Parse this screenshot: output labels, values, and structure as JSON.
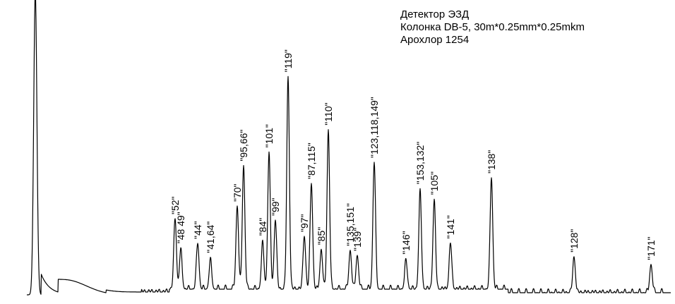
{
  "chart_data": {
    "type": "line",
    "title_lines": [
      "Детектор ЭЗД",
      "Колонка DB-5, 30m*0.25mm*0.25mkm",
      "Арохлор 1254"
    ],
    "xlabel": "",
    "ylabel": "",
    "grid": false,
    "legend": "none",
    "line_color": "#000000",
    "peaks": [
      {
        "label": "\"52\"",
        "rt": 248,
        "h": 100
      },
      {
        "label": "\"48 49\"",
        "rt": 256,
        "h": 55
      },
      {
        "label": "\"44\"",
        "rt": 280,
        "h": 65
      },
      {
        "label": "\"41,64\"",
        "rt": 298,
        "h": 40
      },
      {
        "label": "\"70\"",
        "rt": 336,
        "h": 118
      },
      {
        "label": "\"95,66\"",
        "rt": 345,
        "h": 175
      },
      {
        "label": "\"84\"",
        "rt": 372,
        "h": 65
      },
      {
        "label": "\"101\"",
        "rt": 381,
        "h": 192
      },
      {
        "label": "\"99\"",
        "rt": 390,
        "h": 98
      },
      {
        "label": "\"119\"",
        "rt": 408,
        "h": 300
      },
      {
        "label": "\"97\"",
        "rt": 431,
        "h": 75
      },
      {
        "label": "\"87,115\"",
        "rt": 441,
        "h": 150
      },
      {
        "label": "\"85\"",
        "rt": 455,
        "h": 55
      },
      {
        "label": "\"110\"",
        "rt": 465,
        "h": 225
      },
      {
        "label": "\"135,151\"",
        "rt": 496,
        "h": 55
      },
      {
        "label": "\"139\"",
        "rt": 506,
        "h": 48
      },
      {
        "label": "\"123,118,149\"",
        "rt": 530,
        "h": 180
      },
      {
        "label": "\"146\"",
        "rt": 575,
        "h": 40
      },
      {
        "label": "\"153,132\"",
        "rt": 595,
        "h": 138
      },
      {
        "label": "\"105\"",
        "rt": 615,
        "h": 125
      },
      {
        "label": "\"141\"",
        "rt": 638,
        "h": 65
      },
      {
        "label": "\"138\"",
        "rt": 696,
        "h": 158
      },
      {
        "label": "\"128\"",
        "rt": 813,
        "h": 50
      },
      {
        "label": "\"171\"",
        "rt": 922,
        "h": 40
      }
    ],
    "solvent_peak": {
      "rt": 50,
      "h": 430
    }
  }
}
